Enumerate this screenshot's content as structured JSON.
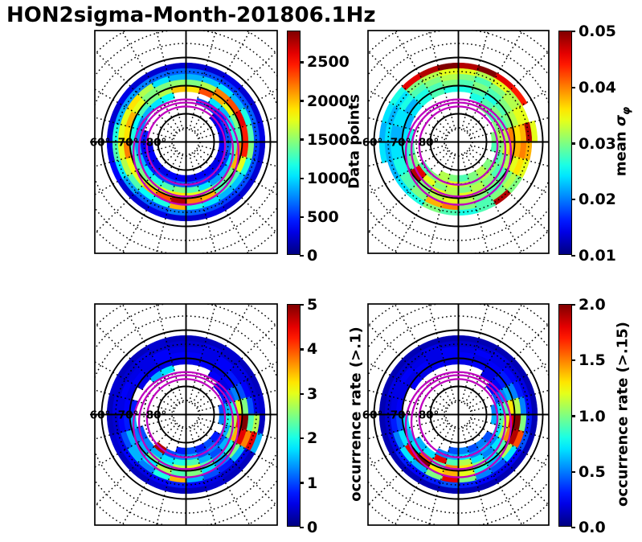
{
  "title": "HON2sigma-Month-201806.1Hz",
  "colors": {
    "background": "#ffffff",
    "axis": "#000000",
    "oval": "#bf00bf",
    "colormap": "jet"
  },
  "polar_grid": {
    "lat_labels": [
      "60°",
      "70°",
      "80°"
    ],
    "lat_label_values": [
      60,
      70,
      80
    ],
    "solid_circle_colat_deg": [
      10,
      20,
      30
    ],
    "dotted_circle_colat_deg": [
      5,
      15,
      25,
      35,
      40,
      45
    ],
    "spoke_step_deg": 15,
    "auroral_ovals": [
      {
        "center_offset_colat_deg": 1.3,
        "radius_colat_deg": 13.9
      },
      {
        "center_offset_colat_deg": 2.7,
        "radius_colat_deg": 16.7
      },
      {
        "center_offset_colat_deg": 3.6,
        "radius_colat_deg": 18.7
      }
    ]
  },
  "chart_data": [
    {
      "type": "heatmap",
      "projection": "polar",
      "name": "data-points",
      "colorbar": {
        "label": "Data points",
        "label_parts": [
          {
            "t": "Data points",
            "s": "n"
          }
        ],
        "tick_labels": [
          "0",
          "500",
          "1000",
          "1500",
          "2000",
          "2500"
        ],
        "tick_values": [
          0,
          500,
          1000,
          1500,
          2000,
          2500
        ],
        "vmin": 0,
        "vmax": 2900
      },
      "grid": {
        "ring_inner_colat_deg": [
          12,
          14,
          16,
          18,
          20,
          22,
          24,
          26
        ],
        "ring_thickness_deg": 2,
        "n_sectors": 24,
        "sector_layout": "15-degree sectors clockwise from top",
        "order": "rings listed inner-to-outer as colat increases; values arrays outermost ring first",
        "missing_value": -1
      },
      "values": [
        [
          0.08,
          0.08,
          0.1,
          0.08,
          0.08,
          0.1,
          0.08,
          0.08,
          0.08,
          0.08,
          0.1,
          0.08,
          0.08,
          0.1,
          0.08,
          0.08,
          0.12,
          0.1,
          0.08,
          0.08,
          0.1,
          0.08,
          0.08,
          0.08
        ],
        [
          0.22,
          0.2,
          0.18,
          0.2,
          0.22,
          0.2,
          0.18,
          0.2,
          0.2,
          0.18,
          0.2,
          0.22,
          0.25,
          0.2,
          0.22,
          0.28,
          0.35,
          0.45,
          0.4,
          0.3,
          0.28,
          0.25,
          0.22,
          0.22
        ],
        [
          0.3,
          0.32,
          0.35,
          0.3,
          0.4,
          0.45,
          0.5,
          0.4,
          0.32,
          0.3,
          0.35,
          0.4,
          0.7,
          0.4,
          0.38,
          0.45,
          0.55,
          0.6,
          0.6,
          0.6,
          0.65,
          0.55,
          0.35,
          0.3
        ],
        [
          0.5,
          0.55,
          0.75,
          0.8,
          0.9,
          0.85,
          0.85,
          0.6,
          0.45,
          0.45,
          0.7,
          0.75,
          0.95,
          0.8,
          0.7,
          0.6,
          0.62,
          0.75,
          0.65,
          0.7,
          0.6,
          0.5,
          0.5,
          0.52
        ],
        [
          0.65,
          0.8,
          0.7,
          0.6,
          0.5,
          0.45,
          0.75,
          0.7,
          0.5,
          0.45,
          0.55,
          0.6,
          0.65,
          0.6,
          0.55,
          0.5,
          0.45,
          0.42,
          0.4,
          0.38,
          0.45,
          0.5,
          0.55,
          0.68
        ],
        [
          -1,
          -1,
          0.35,
          0.3,
          0.35,
          0.4,
          0.45,
          0.35,
          0.3,
          0.28,
          0.35,
          0.45,
          0.5,
          0.45,
          0.4,
          0.35,
          0.3,
          0.28,
          0.25,
          0.25,
          0.3,
          0.35,
          0.38,
          -1
        ],
        [
          -1,
          0.2,
          0.18,
          0.15,
          0.18,
          0.2,
          0.22,
          0.18,
          0.15,
          0.15,
          0.18,
          0.2,
          0.22,
          0.2,
          0.18,
          0.15,
          0.15,
          0.12,
          0.15,
          -1,
          -1,
          -1,
          -1,
          -1
        ],
        [
          -1,
          -1,
          -1,
          0.1,
          0.12,
          0.1,
          0.12,
          0.1,
          0.1,
          0.12,
          0.12,
          0.1,
          0.12,
          0.12,
          0.1,
          0.1,
          0.12,
          0.1,
          -1,
          -1,
          -1,
          -1,
          -1,
          -1
        ]
      ]
    },
    {
      "type": "heatmap",
      "projection": "polar",
      "name": "mean-sigma-phi",
      "colorbar": {
        "label": "mean σφ",
        "label_parts": [
          {
            "t": "mean ",
            "s": "n"
          },
          {
            "t": "σ",
            "s": "i"
          },
          {
            "t": "φ",
            "s": "sub"
          }
        ],
        "tick_labels": [
          "0.01",
          "0.02",
          "0.03",
          "0.04",
          "0.05"
        ],
        "tick_values": [
          0.01,
          0.02,
          0.03,
          0.04,
          0.05
        ],
        "vmin": 0.01,
        "vmax": 0.05
      },
      "grid": {
        "ring_inner_colat_deg": [
          12,
          14,
          16,
          18,
          20,
          22,
          24,
          26
        ],
        "ring_thickness_deg": 2,
        "n_sectors": 24,
        "sector_layout": "15-degree sectors clockwise from top",
        "order": "values arrays outermost ring first",
        "missing_value": -1
      },
      "values": [
        [
          0.95,
          1.0,
          0.9,
          0.85,
          -1,
          0.6,
          -1,
          -1,
          -1,
          -1,
          -1,
          -1,
          -1,
          -1,
          -1,
          -1,
          -1,
          0.35,
          0.3,
          0.35,
          0.4,
          0.9,
          0.95,
          1.0
        ],
        [
          0.6,
          0.55,
          0.6,
          0.55,
          0.6,
          0.95,
          0.7,
          0.6,
          0.5,
          0.95,
          0.45,
          0.4,
          0.45,
          0.5,
          0.4,
          0.35,
          0.3,
          0.3,
          0.35,
          0.3,
          0.35,
          0.5,
          0.55,
          0.6
        ],
        [
          0.5,
          0.45,
          0.5,
          0.55,
          0.6,
          0.7,
          0.75,
          0.65,
          0.55,
          0.5,
          0.45,
          0.5,
          0.75,
          0.7,
          0.5,
          0.45,
          0.4,
          0.35,
          0.3,
          0.35,
          0.4,
          0.45,
          0.5,
          0.55
        ],
        [
          0.45,
          0.5,
          0.45,
          0.5,
          0.55,
          0.65,
          0.7,
          0.6,
          0.5,
          0.45,
          0.5,
          0.55,
          0.6,
          0.55,
          0.5,
          0.45,
          0.4,
          0.35,
          0.3,
          0.35,
          0.3,
          0.4,
          0.45,
          0.5
        ],
        [
          0.4,
          0.45,
          0.4,
          0.45,
          0.5,
          0.75,
          0.7,
          0.55,
          0.45,
          0.5,
          0.55,
          0.6,
          0.55,
          0.6,
          0.5,
          0.95,
          0.45,
          0.4,
          0.35,
          0.3,
          0.35,
          0.4,
          0.45,
          0.4
        ],
        [
          -1,
          0.4,
          0.45,
          0.5,
          0.45,
          0.55,
          0.6,
          0.5,
          0.45,
          0.5,
          0.55,
          0.5,
          0.55,
          0.5,
          0.6,
          0.9,
          0.5,
          0.45,
          0.4,
          -1,
          -1,
          -1,
          -1,
          -1
        ],
        [
          -1,
          -1,
          0.5,
          0.45,
          0.5,
          0.55,
          0.5,
          0.45,
          0.5,
          0.55,
          0.5,
          0.55,
          0.6,
          0.55,
          0.5,
          0.45,
          -1,
          -1,
          -1,
          -1,
          -1,
          -1,
          -1,
          -1
        ],
        [
          -1,
          -1,
          -1,
          -1,
          -1,
          0.5,
          0.45,
          -1,
          0.5,
          0.55,
          0.5,
          0.45,
          0.5,
          0.55,
          -1,
          -1,
          -1,
          -1,
          -1,
          -1,
          -1,
          -1,
          -1,
          -1
        ]
      ]
    },
    {
      "type": "heatmap",
      "projection": "polar",
      "name": "occurrence-rate-gt-0.1",
      "colorbar": {
        "label": "occurrence rate (>.1)",
        "label_parts": [
          {
            "t": "occurrence rate (>.1)",
            "s": "n"
          }
        ],
        "tick_labels": [
          "0",
          "1",
          "2",
          "3",
          "4",
          "5"
        ],
        "tick_values": [
          0,
          1,
          2,
          3,
          4,
          5
        ],
        "vmin": 0,
        "vmax": 5
      },
      "grid": {
        "ring_inner_colat_deg": [
          12,
          14,
          16,
          18,
          20,
          22,
          24,
          26
        ],
        "ring_thickness_deg": 2,
        "n_sectors": 24,
        "sector_layout": "15-degree sectors clockwise from top",
        "order": "values arrays outermost ring first",
        "missing_value": -1
      },
      "values": [
        [
          0.06,
          0.06,
          0.08,
          0.06,
          0.06,
          0.08,
          0.06,
          0.3,
          0.06,
          0.06,
          0.08,
          0.06,
          0.06,
          0.08,
          0.06,
          0.06,
          0.08,
          0.06,
          0.06,
          0.08,
          0.06,
          0.06,
          0.08,
          0.06
        ],
        [
          0.08,
          0.1,
          0.08,
          0.1,
          0.08,
          0.1,
          0.55,
          0.9,
          0.1,
          0.08,
          0.1,
          0.12,
          0.15,
          0.12,
          0.1,
          0.12,
          0.1,
          0.08,
          0.1,
          0.08,
          0.08,
          0.1,
          0.08,
          0.08
        ],
        [
          0.1,
          0.1,
          0.12,
          0.1,
          0.12,
          0.2,
          0.45,
          0.75,
          0.3,
          0.15,
          0.2,
          0.3,
          0.7,
          0.4,
          0.25,
          0.3,
          0.2,
          0.12,
          0.1,
          0.12,
          0.1,
          0.1,
          0.12,
          0.1
        ],
        [
          0.12,
          0.1,
          0.12,
          0.15,
          0.2,
          0.5,
          1.0,
          0.9,
          0.5,
          0.25,
          0.35,
          0.5,
          0.45,
          0.55,
          0.35,
          0.3,
          0.3,
          0.15,
          0.12,
          0.1,
          0.12,
          0.1,
          0.12,
          0.12
        ],
        [
          0.1,
          0.12,
          0.1,
          0.12,
          0.25,
          0.6,
          0.85,
          0.7,
          0.4,
          0.3,
          0.45,
          0.6,
          0.55,
          0.4,
          0.5,
          0.3,
          0.25,
          0.3,
          0.15,
          -1,
          0.1,
          0.12,
          0.1,
          0.1
        ],
        [
          -1,
          -1,
          0.12,
          0.1,
          0.2,
          0.4,
          0.55,
          0.5,
          0.3,
          0.2,
          0.3,
          0.45,
          0.4,
          0.35,
          0.3,
          0.25,
          0.2,
          -1,
          -1,
          -1,
          -1,
          0.3,
          0.35,
          -1
        ],
        [
          -1,
          -1,
          -1,
          0.1,
          0.15,
          0.3,
          0.4,
          0.3,
          0.2,
          0.25,
          0.2,
          0.3,
          0.25,
          0.2,
          0.95,
          -1,
          -1,
          -1,
          -1,
          -1,
          -1,
          -1,
          -1,
          -1
        ],
        [
          -1,
          -1,
          -1,
          -1,
          -1,
          0.2,
          0.25,
          -1,
          0.15,
          0.2,
          0.15,
          0.2,
          0.15,
          -1,
          -1,
          -1,
          -1,
          -1,
          -1,
          -1,
          -1,
          -1,
          -1,
          -1
        ]
      ]
    },
    {
      "type": "heatmap",
      "projection": "polar",
      "name": "occurrence-rate-gt-0.15",
      "colorbar": {
        "label": "occurrence rate (>.15)",
        "label_parts": [
          {
            "t": "occurrence rate (>.15)",
            "s": "n"
          }
        ],
        "tick_labels": [
          "0.0",
          "0.5",
          "1.0",
          "1.5",
          "2.0"
        ],
        "tick_values": [
          0.0,
          0.5,
          1.0,
          1.5,
          2.0
        ],
        "vmin": 0,
        "vmax": 2
      },
      "grid": {
        "ring_inner_colat_deg": [
          12,
          14,
          16,
          18,
          20,
          22,
          24,
          26
        ],
        "ring_thickness_deg": 2,
        "n_sectors": 24,
        "sector_layout": "15-degree sectors clockwise from top",
        "order": "values arrays outermost ring first",
        "missing_value": -1
      },
      "values": [
        [
          0.05,
          0.05,
          0.05,
          0.05,
          0.05,
          0.05,
          0.05,
          0.05,
          0.05,
          0.05,
          0.05,
          0.05,
          0.05,
          0.05,
          0.05,
          0.05,
          0.05,
          0.05,
          0.05,
          0.05,
          0.05,
          0.05,
          0.05,
          0.05
        ],
        [
          0.08,
          0.08,
          0.1,
          0.08,
          0.1,
          0.12,
          0.15,
          0.2,
          0.12,
          0.1,
          0.12,
          0.15,
          0.2,
          0.15,
          0.12,
          0.15,
          0.1,
          0.08,
          0.08,
          0.1,
          0.08,
          0.08,
          0.1,
          0.08
        ],
        [
          0.1,
          0.12,
          0.1,
          0.12,
          0.15,
          0.25,
          0.5,
          0.8,
          0.35,
          0.2,
          0.25,
          0.5,
          0.9,
          0.5,
          0.3,
          0.35,
          0.25,
          0.15,
          0.1,
          0.1,
          0.12,
          0.1,
          0.1,
          0.12
        ],
        [
          0.12,
          0.1,
          0.12,
          0.15,
          0.25,
          0.55,
          1.0,
          0.95,
          0.55,
          0.3,
          0.4,
          0.6,
          0.7,
          0.65,
          1.0,
          0.9,
          0.35,
          0.2,
          0.12,
          0.1,
          0.1,
          0.12,
          0.1,
          0.12
        ],
        [
          0.1,
          0.12,
          0.1,
          0.15,
          0.3,
          0.65,
          0.9,
          0.75,
          0.45,
          0.35,
          0.5,
          0.65,
          0.75,
          0.45,
          0.8,
          0.35,
          0.3,
          0.35,
          -1,
          -1,
          0.12,
          0.1,
          0.12,
          0.1
        ],
        [
          -1,
          -1,
          0.1,
          0.12,
          0.25,
          0.45,
          0.6,
          0.55,
          0.35,
          0.25,
          0.35,
          0.55,
          0.45,
          0.9,
          0.35,
          0.3,
          -1,
          -1,
          -1,
          -1,
          -1,
          -1,
          -1,
          -1
        ],
        [
          -1,
          -1,
          -1,
          0.12,
          0.2,
          0.35,
          0.45,
          0.35,
          0.25,
          0.3,
          0.25,
          0.35,
          0.3,
          0.25,
          -1,
          -1,
          -1,
          -1,
          -1,
          -1,
          -1,
          -1,
          -1,
          -1
        ],
        [
          -1,
          -1,
          -1,
          -1,
          -1,
          0.25,
          0.3,
          -1,
          0.2,
          0.25,
          0.2,
          0.25,
          0.2,
          -1,
          -1,
          -1,
          -1,
          -1,
          -1,
          -1,
          -1,
          -1,
          -1,
          -1
        ]
      ]
    }
  ]
}
